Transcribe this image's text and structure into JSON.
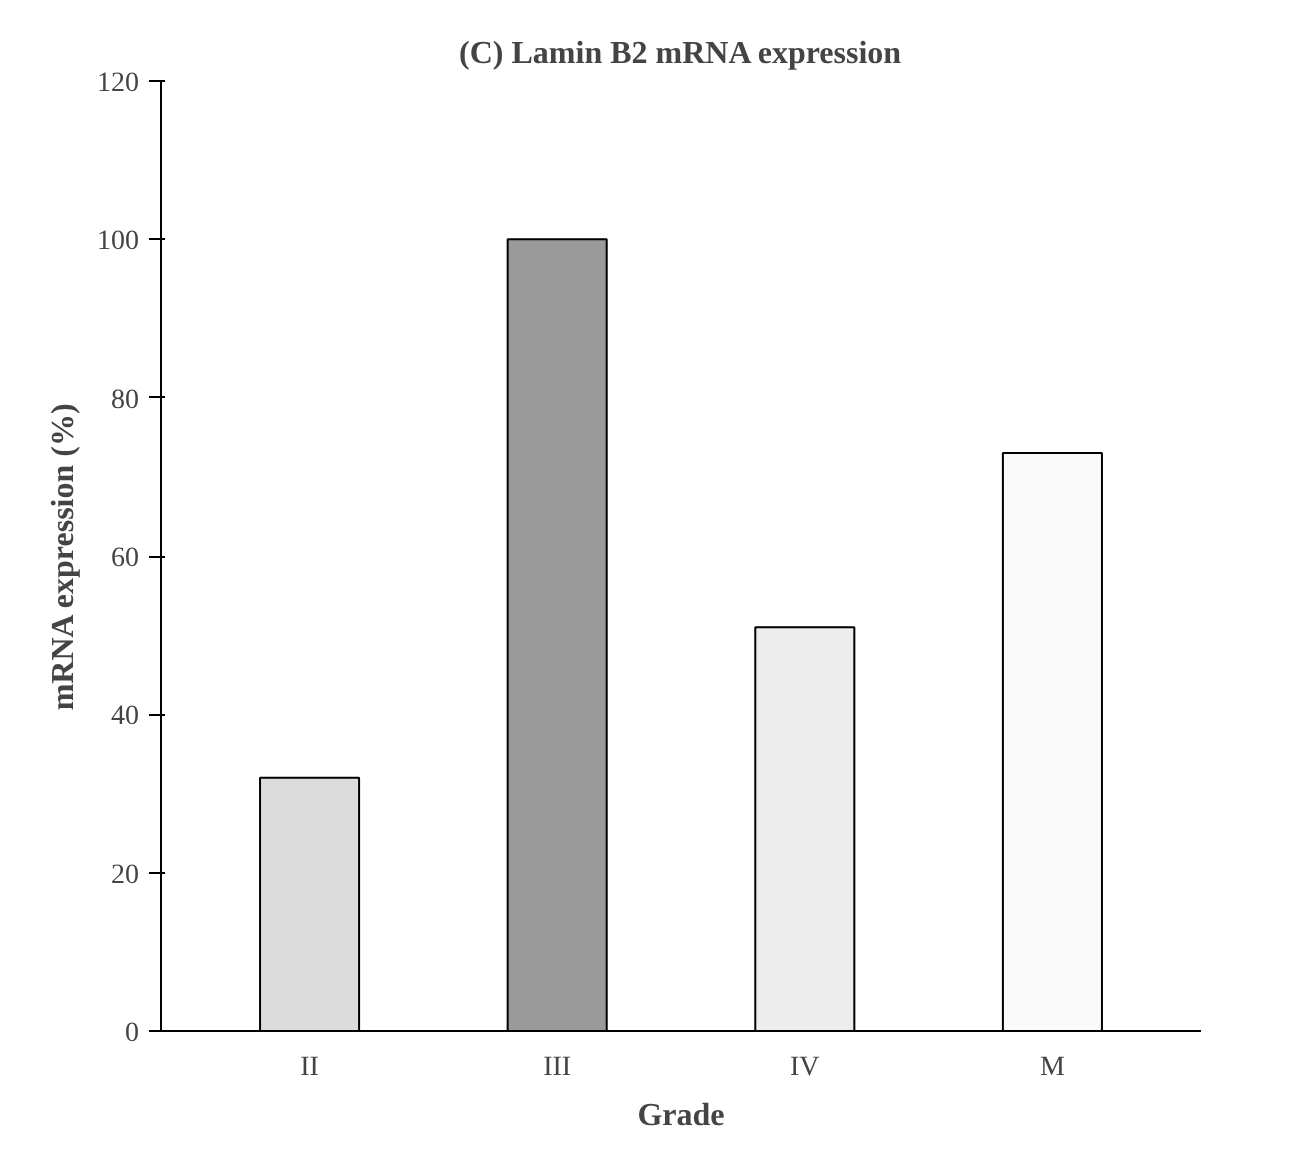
{
  "chart_data": {
    "type": "bar",
    "title": "(C) Lamin B2 mRNA expression",
    "xlabel": "Grade",
    "ylabel": "mRNA expression (%)",
    "categories": [
      "II",
      "III",
      "IV",
      "M"
    ],
    "values": [
      32,
      100,
      51,
      73
    ],
    "colors": [
      "#dcdcdc",
      "#9a9a9a",
      "#ededed",
      "#fafafa"
    ],
    "ylim": [
      0,
      120
    ],
    "yticks": [
      0,
      20,
      40,
      60,
      80,
      100,
      120
    ]
  }
}
